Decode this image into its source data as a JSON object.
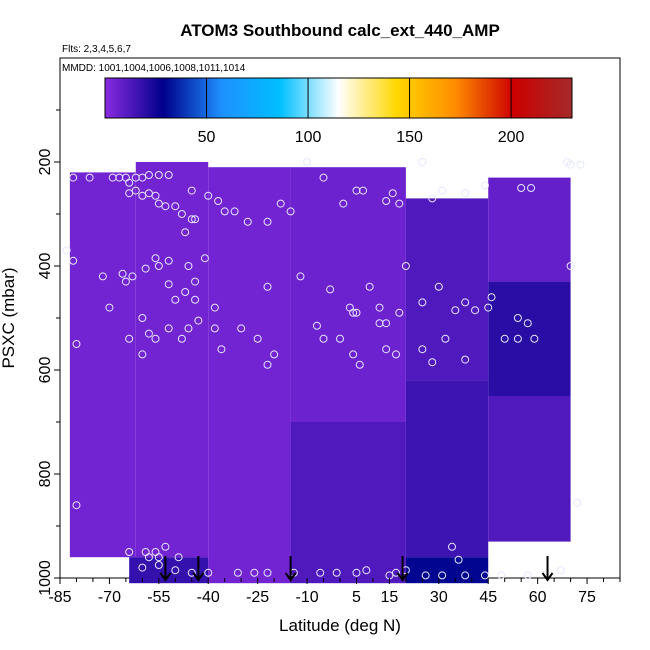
{
  "chart_data": {
    "type": "heatmap",
    "title": "ATOM3 Southbound calc_ext_440_AMP",
    "annotations": [
      "Flts: 2,3,4,5,6,7",
      "MMDD: 1001,1004,1006,1008,1011,1014"
    ],
    "xlabel": "Latitude (deg N)",
    "ylabel": "PSXC (mbar)",
    "xlim": [
      -85,
      85
    ],
    "ylim": [
      1000,
      0
    ],
    "x_ticks": [
      -85,
      -70,
      -55,
      -40,
      -25,
      -10,
      5,
      15,
      30,
      45,
      60,
      75
    ],
    "y_ticks": [
      200,
      400,
      600,
      800,
      1000
    ],
    "colorbar": {
      "range": [
        0,
        230
      ],
      "ticks": [
        50,
        100,
        150,
        200
      ],
      "colors": [
        "#8a2be2",
        "#00008b",
        "#1e90ff",
        "#00bfff",
        "#ffffff",
        "#ffd700",
        "#ff8c00",
        "#cc0000",
        "#a52a2a"
      ]
    },
    "cells": [
      {
        "lat": [
          -82,
          -62
        ],
        "p": [
          220,
          960
        ],
        "v": 5
      },
      {
        "lat": [
          -62,
          -40
        ],
        "p": [
          200,
          960
        ],
        "v": 5
      },
      {
        "lat": [
          -64,
          -40
        ],
        "p": [
          960,
          1010
        ],
        "v": 18
      },
      {
        "lat": [
          -40,
          -15
        ],
        "p": [
          210,
          1010
        ],
        "v": 5
      },
      {
        "lat": [
          -15,
          20
        ],
        "p": [
          210,
          700
        ],
        "v": 6
      },
      {
        "lat": [
          -15,
          20
        ],
        "p": [
          700,
          1010
        ],
        "v": 12
      },
      {
        "lat": [
          20,
          45
        ],
        "p": [
          270,
          620
        ],
        "v": 12
      },
      {
        "lat": [
          20,
          45
        ],
        "p": [
          620,
          960
        ],
        "v": 16
      },
      {
        "lat": [
          20,
          45
        ],
        "p": [
          960,
          1010
        ],
        "v": 30
      },
      {
        "lat": [
          45,
          70
        ],
        "p": [
          230,
          430
        ],
        "v": 8
      },
      {
        "lat": [
          45,
          70
        ],
        "p": [
          430,
          650
        ],
        "v": 20
      },
      {
        "lat": [
          45,
          70
        ],
        "p": [
          650,
          930
        ],
        "v": 12
      }
    ],
    "points": [
      [
        -81,
        230
      ],
      [
        -76,
        230
      ],
      [
        -69,
        230
      ],
      [
        -67,
        230
      ],
      [
        -65,
        230
      ],
      [
        -64,
        240
      ],
      [
        -62,
        230
      ],
      [
        -60,
        230
      ],
      [
        -58,
        225
      ],
      [
        -55,
        225
      ],
      [
        -52,
        225
      ],
      [
        -64,
        260
      ],
      [
        -62,
        255
      ],
      [
        -60,
        265
      ],
      [
        -58,
        260
      ],
      [
        -56,
        265
      ],
      [
        -55,
        280
      ],
      [
        -53,
        285
      ],
      [
        -50,
        285
      ],
      [
        -45,
        255
      ],
      [
        -40,
        265
      ],
      [
        -37,
        275
      ],
      [
        -35,
        295
      ],
      [
        -32,
        295
      ],
      [
        -28,
        315
      ],
      [
        -22,
        315
      ],
      [
        -18,
        280
      ],
      [
        -15,
        295
      ],
      [
        -10,
        200
      ],
      [
        -5,
        230
      ],
      [
        1,
        280
      ],
      [
        5,
        255
      ],
      [
        7,
        255
      ],
      [
        14,
        275
      ],
      [
        16,
        260
      ],
      [
        18,
        280
      ],
      [
        25,
        200
      ],
      [
        28,
        270
      ],
      [
        31,
        255
      ],
      [
        38,
        260
      ],
      [
        44,
        245
      ],
      [
        55,
        250
      ],
      [
        58,
        250
      ],
      [
        69,
        200
      ],
      [
        70,
        205
      ],
      [
        73,
        205
      ],
      [
        -83,
        370
      ],
      [
        -81,
        390
      ],
      [
        -72,
        420
      ],
      [
        -66,
        415
      ],
      [
        -65,
        430
      ],
      [
        -63,
        420
      ],
      [
        -59,
        405
      ],
      [
        -56,
        385
      ],
      [
        -55,
        400
      ],
      [
        -52,
        390
      ],
      [
        -48,
        300
      ],
      [
        -45,
        310
      ],
      [
        -44,
        310
      ],
      [
        -47,
        335
      ],
      [
        -44,
        430
      ],
      [
        -52,
        435
      ],
      [
        -50,
        465
      ],
      [
        -47,
        450
      ],
      [
        -44,
        465
      ],
      [
        -46,
        400
      ],
      [
        -41,
        385
      ],
      [
        -38,
        480
      ],
      [
        -22,
        440
      ],
      [
        -12,
        420
      ],
      [
        -7,
        515
      ],
      [
        -3,
        445
      ],
      [
        3,
        480
      ],
      [
        4,
        490
      ],
      [
        5,
        490
      ],
      [
        9,
        440
      ],
      [
        12,
        480
      ],
      [
        14,
        510
      ],
      [
        18,
        490
      ],
      [
        20,
        400
      ],
      [
        25,
        470
      ],
      [
        30,
        440
      ],
      [
        35,
        485
      ],
      [
        38,
        470
      ],
      [
        41,
        485
      ],
      [
        45,
        480
      ],
      [
        46,
        460
      ],
      [
        54,
        500
      ],
      [
        57,
        510
      ],
      [
        70,
        400
      ],
      [
        -70,
        480
      ],
      [
        -64,
        540
      ],
      [
        -60,
        500
      ],
      [
        -58,
        530
      ],
      [
        -60,
        570
      ],
      [
        -56,
        540
      ],
      [
        -52,
        520
      ],
      [
        -48,
        540
      ],
      [
        -46,
        520
      ],
      [
        -43,
        505
      ],
      [
        -38,
        520
      ],
      [
        -36,
        560
      ],
      [
        -30,
        520
      ],
      [
        -25,
        540
      ],
      [
        -20,
        570
      ],
      [
        -22,
        590
      ],
      [
        -5,
        540
      ],
      [
        0,
        540
      ],
      [
        4,
        570
      ],
      [
        6,
        590
      ],
      [
        12,
        510
      ],
      [
        14,
        560
      ],
      [
        17,
        570
      ],
      [
        25,
        560
      ],
      [
        28,
        585
      ],
      [
        32,
        540
      ],
      [
        38,
        580
      ],
      [
        50,
        540
      ],
      [
        54,
        540
      ],
      [
        59,
        540
      ],
      [
        -80,
        550
      ],
      [
        -80,
        860
      ],
      [
        -64,
        950
      ],
      [
        -59,
        950
      ],
      [
        -58,
        960
      ],
      [
        -56,
        950
      ],
      [
        -55,
        960
      ],
      [
        -53,
        940
      ],
      [
        -49,
        960
      ],
      [
        -60,
        980
      ],
      [
        -55,
        975
      ],
      [
        -50,
        985
      ],
      [
        -45,
        990
      ],
      [
        -40,
        990
      ],
      [
        -31,
        990
      ],
      [
        -26,
        990
      ],
      [
        -22,
        990
      ],
      [
        -14,
        990
      ],
      [
        -6,
        990
      ],
      [
        -1,
        990
      ],
      [
        5,
        990
      ],
      [
        8,
        985
      ],
      [
        15,
        995
      ],
      [
        17,
        990
      ],
      [
        20,
        985
      ],
      [
        26,
        995
      ],
      [
        31,
        995
      ],
      [
        34,
        940
      ],
      [
        36,
        965
      ],
      [
        38,
        995
      ],
      [
        44,
        995
      ],
      [
        49,
        995
      ],
      [
        57,
        995
      ],
      [
        67,
        985
      ],
      [
        72,
        855
      ]
    ],
    "arrows": [
      -53,
      -43,
      -15,
      19,
      63
    ]
  }
}
